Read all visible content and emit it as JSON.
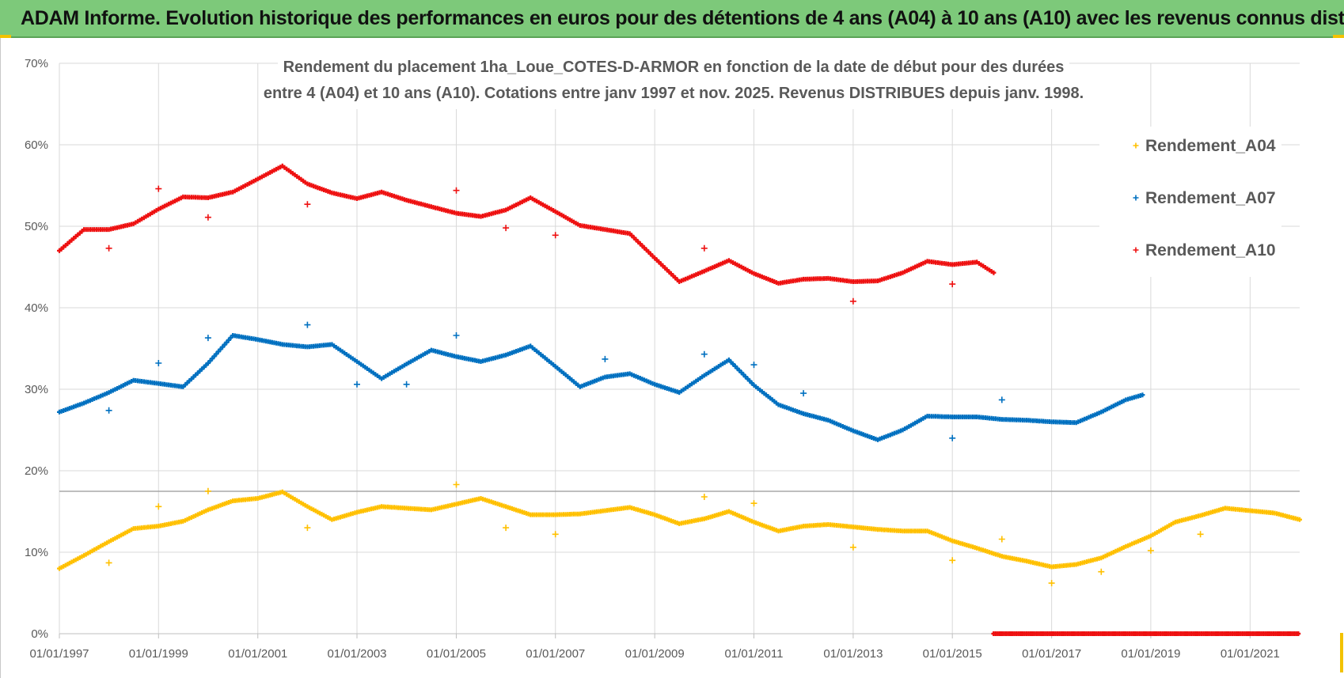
{
  "header": {
    "title": "ADAM Informe. Evolution historique des performances en euros pour des détentions de 4 ans (A04) à 10 ans (A10) avec les revenus connus distribués"
  },
  "chart_data": {
    "type": "scatter",
    "title_lines": [
      "Rendement du placement 1ha_Loue_COTES-D-ARMOR en fonction de la date de début pour des durées",
      "entre 4 (A04) et 10 ans (A10).  Cotations entre janv 1997 et nov. 2025. Revenus DISTRIBUES depuis janv. 1998."
    ],
    "xlabel": "",
    "ylabel": "",
    "x_ticks": [
      "01/01/1997",
      "01/01/1999",
      "01/01/2001",
      "01/01/2003",
      "01/01/2005",
      "01/01/2007",
      "01/01/2009",
      "01/01/2011",
      "01/01/2013",
      "01/01/2015",
      "01/01/2017",
      "01/01/2019",
      "01/01/2021"
    ],
    "y_ticks": [
      "0%",
      "10%",
      "20%",
      "30%",
      "40%",
      "50%",
      "60%",
      "70%"
    ],
    "ylim": [
      0,
      70
    ],
    "xlim": [
      "1997-01-01",
      "2022-01-01"
    ],
    "grid": true,
    "legend_position": "right",
    "series": [
      {
        "name": "Rendement_A04",
        "color": "#ffc000",
        "points": [
          [
            "1997-01-01",
            8.0
          ],
          [
            "1997-07-01",
            9.6
          ],
          [
            "1998-01-01",
            11.3
          ],
          [
            "1998-07-01",
            12.9
          ],
          [
            "1999-01-01",
            13.2
          ],
          [
            "1999-07-01",
            13.8
          ],
          [
            "2000-01-01",
            15.2
          ],
          [
            "2000-07-01",
            16.3
          ],
          [
            "2001-01-01",
            16.6
          ],
          [
            "2001-07-01",
            17.4
          ],
          [
            "2002-01-01",
            15.6
          ],
          [
            "2002-07-01",
            14.0
          ],
          [
            "2003-01-01",
            14.9
          ],
          [
            "2003-07-01",
            15.6
          ],
          [
            "2004-01-01",
            15.4
          ],
          [
            "2004-07-01",
            15.2
          ],
          [
            "2005-01-01",
            15.9
          ],
          [
            "2005-07-01",
            16.6
          ],
          [
            "2006-01-01",
            15.6
          ],
          [
            "2006-07-01",
            14.6
          ],
          [
            "2007-01-01",
            14.6
          ],
          [
            "2007-07-01",
            14.7
          ],
          [
            "2008-01-01",
            15.1
          ],
          [
            "2008-07-01",
            15.5
          ],
          [
            "2009-01-01",
            14.6
          ],
          [
            "2009-07-01",
            13.5
          ],
          [
            "2010-01-01",
            14.1
          ],
          [
            "2010-07-01",
            15.0
          ],
          [
            "2011-01-01",
            13.7
          ],
          [
            "2011-07-01",
            12.6
          ],
          [
            "2012-01-01",
            13.2
          ],
          [
            "2012-07-01",
            13.4
          ],
          [
            "2013-01-01",
            13.1
          ],
          [
            "2013-07-01",
            12.8
          ],
          [
            "2014-01-01",
            12.6
          ],
          [
            "2014-07-01",
            12.6
          ],
          [
            "2015-01-01",
            11.4
          ],
          [
            "2015-07-01",
            10.5
          ],
          [
            "2016-01-01",
            9.5
          ],
          [
            "2016-07-01",
            8.9
          ],
          [
            "2017-01-01",
            8.2
          ],
          [
            "2017-07-01",
            8.5
          ],
          [
            "2018-01-01",
            9.3
          ],
          [
            "2018-07-01",
            10.7
          ],
          [
            "2019-01-01",
            12.0
          ],
          [
            "2019-07-01",
            13.7
          ],
          [
            "2020-01-01",
            14.5
          ],
          [
            "2020-07-01",
            15.4
          ],
          [
            "2021-01-01",
            15.1
          ],
          [
            "2021-07-01",
            14.8
          ],
          [
            "2022-01-01",
            14.0
          ]
        ],
        "outliers": [
          [
            "1998-01-01",
            8.7
          ],
          [
            "1999-01-01",
            15.6
          ],
          [
            "2000-01-01",
            17.5
          ],
          [
            "2002-01-01",
            13.0
          ],
          [
            "2005-01-01",
            18.3
          ],
          [
            "2006-01-01",
            13.0
          ],
          [
            "2007-01-01",
            12.2
          ],
          [
            "2010-01-01",
            16.8
          ],
          [
            "2011-01-01",
            16.0
          ],
          [
            "2013-01-01",
            10.6
          ],
          [
            "2015-01-01",
            9.0
          ],
          [
            "2016-01-01",
            11.6
          ],
          [
            "2017-01-01",
            6.2
          ],
          [
            "2018-01-01",
            7.6
          ],
          [
            "2019-01-01",
            10.2
          ],
          [
            "2020-01-01",
            12.2
          ]
        ]
      },
      {
        "name": "Rendement_A07",
        "color": "#0070c0",
        "points": [
          [
            "1997-01-01",
            27.2
          ],
          [
            "1997-07-01",
            28.3
          ],
          [
            "1998-01-01",
            29.6
          ],
          [
            "1998-07-01",
            31.1
          ],
          [
            "1999-01-01",
            30.7
          ],
          [
            "1999-07-01",
            30.3
          ],
          [
            "2000-01-01",
            33.2
          ],
          [
            "2000-07-01",
            36.6
          ],
          [
            "2001-01-01",
            36.1
          ],
          [
            "2001-07-01",
            35.5
          ],
          [
            "2002-01-01",
            35.2
          ],
          [
            "2002-07-01",
            35.5
          ],
          [
            "2003-01-01",
            33.4
          ],
          [
            "2003-07-01",
            31.3
          ],
          [
            "2004-01-01",
            33.1
          ],
          [
            "2004-07-01",
            34.8
          ],
          [
            "2005-01-01",
            34.0
          ],
          [
            "2005-07-01",
            33.4
          ],
          [
            "2006-01-01",
            34.2
          ],
          [
            "2006-07-01",
            35.3
          ],
          [
            "2007-01-01",
            32.8
          ],
          [
            "2007-07-01",
            30.3
          ],
          [
            "2008-01-01",
            31.5
          ],
          [
            "2008-07-01",
            31.9
          ],
          [
            "2009-01-01",
            30.6
          ],
          [
            "2009-07-01",
            29.6
          ],
          [
            "2010-01-01",
            31.7
          ],
          [
            "2010-07-01",
            33.6
          ],
          [
            "2011-01-01",
            30.5
          ],
          [
            "2011-07-01",
            28.1
          ],
          [
            "2012-01-01",
            27.0
          ],
          [
            "2012-07-01",
            26.2
          ],
          [
            "2013-01-01",
            24.9
          ],
          [
            "2013-07-01",
            23.8
          ],
          [
            "2014-01-01",
            25.0
          ],
          [
            "2014-07-01",
            26.7
          ],
          [
            "2015-01-01",
            26.6
          ],
          [
            "2015-07-01",
            26.6
          ],
          [
            "2016-01-01",
            26.3
          ],
          [
            "2016-07-01",
            26.2
          ],
          [
            "2017-01-01",
            26.0
          ],
          [
            "2017-07-01",
            25.9
          ],
          [
            "2018-01-01",
            27.2
          ],
          [
            "2018-07-01",
            28.7
          ],
          [
            "2018-11-01",
            29.3
          ]
        ],
        "outliers": [
          [
            "1998-01-01",
            27.4
          ],
          [
            "1999-01-01",
            33.2
          ],
          [
            "2000-01-01",
            36.3
          ],
          [
            "2002-01-01",
            37.9
          ],
          [
            "2003-01-01",
            30.6
          ],
          [
            "2004-01-01",
            30.6
          ],
          [
            "2005-01-01",
            36.6
          ],
          [
            "2008-01-01",
            33.7
          ],
          [
            "2010-01-01",
            34.3
          ],
          [
            "2011-01-01",
            33.0
          ],
          [
            "2012-01-01",
            29.5
          ],
          [
            "2015-01-01",
            24.0
          ],
          [
            "2016-01-01",
            28.7
          ]
        ]
      },
      {
        "name": "Rendement_A10",
        "color": "#ee1111",
        "points": [
          [
            "1997-01-01",
            47.0
          ],
          [
            "1997-07-01",
            49.6
          ],
          [
            "1998-01-01",
            49.6
          ],
          [
            "1998-07-01",
            50.3
          ],
          [
            "1999-01-01",
            52.1
          ],
          [
            "1999-07-01",
            53.6
          ],
          [
            "2000-01-01",
            53.5
          ],
          [
            "2000-07-01",
            54.2
          ],
          [
            "2001-01-01",
            55.8
          ],
          [
            "2001-07-01",
            57.4
          ],
          [
            "2002-01-01",
            55.2
          ],
          [
            "2002-07-01",
            54.1
          ],
          [
            "2003-01-01",
            53.4
          ],
          [
            "2003-07-01",
            54.2
          ],
          [
            "2004-01-01",
            53.2
          ],
          [
            "2004-07-01",
            52.4
          ],
          [
            "2005-01-01",
            51.6
          ],
          [
            "2005-07-01",
            51.2
          ],
          [
            "2006-01-01",
            52.0
          ],
          [
            "2006-07-01",
            53.5
          ],
          [
            "2007-01-01",
            51.8
          ],
          [
            "2007-07-01",
            50.1
          ],
          [
            "2008-01-01",
            49.6
          ],
          [
            "2008-07-01",
            49.1
          ],
          [
            "2009-01-01",
            46.1
          ],
          [
            "2009-07-01",
            43.2
          ],
          [
            "2010-01-01",
            44.5
          ],
          [
            "2010-07-01",
            45.8
          ],
          [
            "2011-01-01",
            44.2
          ],
          [
            "2011-07-01",
            43.0
          ],
          [
            "2012-01-01",
            43.5
          ],
          [
            "2012-07-01",
            43.6
          ],
          [
            "2013-01-01",
            43.2
          ],
          [
            "2013-07-01",
            43.3
          ],
          [
            "2014-01-01",
            44.3
          ],
          [
            "2014-07-01",
            45.7
          ],
          [
            "2015-01-01",
            45.3
          ],
          [
            "2015-07-01",
            45.6
          ],
          [
            "2015-11-01",
            44.3
          ]
        ],
        "outliers": [
          [
            "1998-01-01",
            47.3
          ],
          [
            "1999-01-01",
            54.6
          ],
          [
            "2000-01-01",
            51.1
          ],
          [
            "2002-01-01",
            52.7
          ],
          [
            "2005-01-01",
            54.4
          ],
          [
            "2006-01-01",
            49.8
          ],
          [
            "2007-01-01",
            48.9
          ],
          [
            "2010-01-01",
            47.3
          ],
          [
            "2013-01-01",
            40.8
          ],
          [
            "2015-01-01",
            42.9
          ]
        ],
        "zero_range": [
          "2015-11-01",
          "2022-01-01"
        ]
      }
    ]
  }
}
